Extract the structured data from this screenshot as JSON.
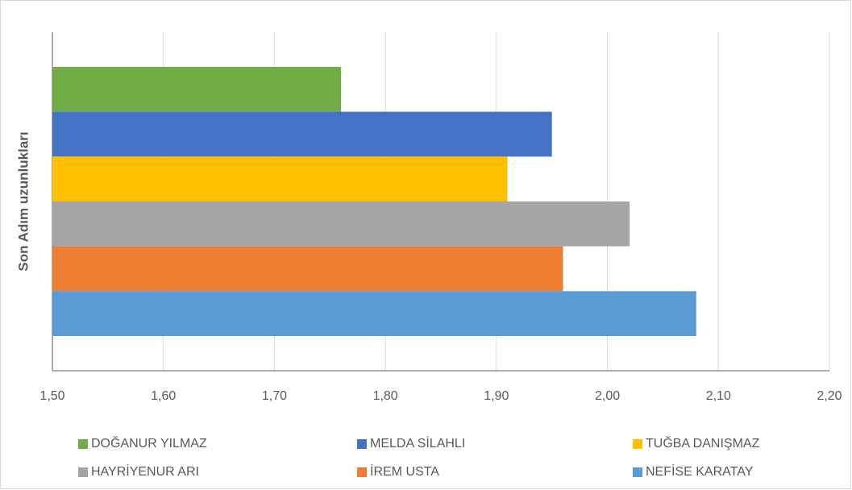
{
  "chart_data": {
    "type": "barh",
    "y_label": "Son Adım uzunlukları",
    "series": [
      {
        "name": "DOĞANUR YILMAZ",
        "color": "#70ad47",
        "values": [
          1.76
        ]
      },
      {
        "name": "MELDA SİLAHLI",
        "color": "#4472c4",
        "values": [
          1.95
        ]
      },
      {
        "name": "TUĞBA DANIŞMAZ",
        "color": "#ffc000",
        "values": [
          1.91
        ]
      },
      {
        "name": "HAYRİYENUR ARI",
        "color": "#a5a5a5",
        "values": [
          2.02
        ]
      },
      {
        "name": "İREM USTA",
        "color": "#ed7d31",
        "values": [
          1.96
        ]
      },
      {
        "name": "NEFİSE KARATAY",
        "color": "#5b9bd5",
        "values": [
          2.08
        ]
      }
    ],
    "xlim": [
      1.5,
      2.2
    ],
    "xticks": [
      {
        "value": 1.5,
        "label": "1,50"
      },
      {
        "value": 1.6,
        "label": "1,60"
      },
      {
        "value": 1.7,
        "label": "1,70"
      },
      {
        "value": 1.8,
        "label": "1,80"
      },
      {
        "value": 1.9,
        "label": "1,90"
      },
      {
        "value": 2.0,
        "label": "2,00"
      },
      {
        "value": 2.1,
        "label": "2,10"
      },
      {
        "value": 2.2,
        "label": "2,20"
      }
    ],
    "grid": true,
    "legend": "bottom"
  }
}
